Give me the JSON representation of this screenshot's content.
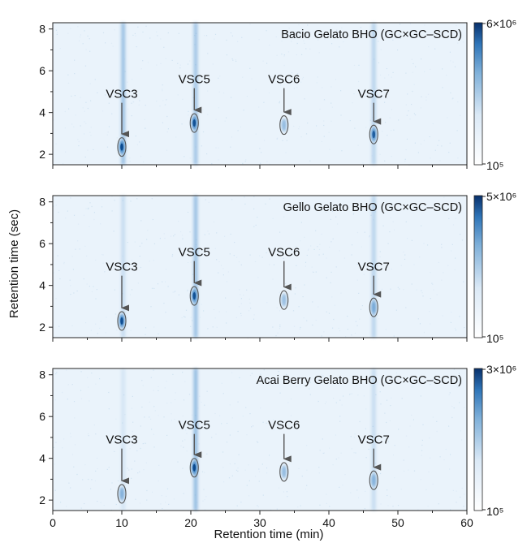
{
  "chart_data": [
    {
      "type": "heatmap",
      "title": "Bacio Gelato BHO (GC×GC–SCD)",
      "xlim": [
        0,
        60
      ],
      "ylim": [
        1.5,
        8.3
      ],
      "colorbar": {
        "max_label": "6×10⁶",
        "min_label": "10⁵",
        "max": 6000000,
        "min": 100000,
        "scale": "log"
      },
      "peaks": [
        {
          "label": "VSC3",
          "x": 10,
          "y": 2.35,
          "intensity": 1.0
        },
        {
          "label": "VSC5",
          "x": 20.5,
          "y": 3.5,
          "intensity": 0.9
        },
        {
          "label": "VSC6",
          "x": 33.5,
          "y": 3.4,
          "intensity": 0.25
        },
        {
          "label": "VSC7",
          "x": 46.5,
          "y": 2.95,
          "intensity": 0.75
        }
      ],
      "label_y": [
        4.7,
        5.4,
        5.4,
        4.7
      ],
      "streaks": [
        {
          "x": 10.2,
          "strength": 0.55
        },
        {
          "x": 20.7,
          "strength": 0.5
        },
        {
          "x": 46.5,
          "strength": 0.35
        }
      ]
    },
    {
      "type": "heatmap",
      "title": "Gello Gelato BHO (GC×GC–SCD)",
      "xlim": [
        0,
        60
      ],
      "ylim": [
        1.5,
        8.3
      ],
      "colorbar": {
        "max_label": "5×10⁶",
        "min_label": "10⁵",
        "max": 5000000,
        "min": 100000,
        "scale": "log"
      },
      "peaks": [
        {
          "label": "VSC3",
          "x": 10,
          "y": 2.3,
          "intensity": 0.95
        },
        {
          "label": "VSC5",
          "x": 20.5,
          "y": 3.5,
          "intensity": 0.9
        },
        {
          "label": "VSC6",
          "x": 33.5,
          "y": 3.3,
          "intensity": 0.2
        },
        {
          "label": "VSC7",
          "x": 46.5,
          "y": 2.95,
          "intensity": 0.35
        }
      ],
      "label_y": [
        4.7,
        5.4,
        5.4,
        4.7
      ],
      "streaks": [
        {
          "x": 10.2,
          "strength": 0.25
        },
        {
          "x": 20.7,
          "strength": 0.55
        },
        {
          "x": 46.5,
          "strength": 0.35
        }
      ]
    },
    {
      "type": "heatmap",
      "title": "Acai Berry Gelato BHO (GC×GC–SCD)",
      "xlim": [
        0,
        60
      ],
      "ylim": [
        1.5,
        8.3
      ],
      "colorbar": {
        "max_label": "3×10⁶",
        "min_label": "10⁵",
        "max": 3000000,
        "min": 100000,
        "scale": "log"
      },
      "peaks": [
        {
          "label": "VSC3",
          "x": 10,
          "y": 2.3,
          "intensity": 0.35
        },
        {
          "label": "VSC5",
          "x": 20.5,
          "y": 3.55,
          "intensity": 1.0
        },
        {
          "label": "VSC6",
          "x": 33.5,
          "y": 3.35,
          "intensity": 0.25
        },
        {
          "label": "VSC7",
          "x": 46.5,
          "y": 2.95,
          "intensity": 0.25
        }
      ],
      "label_y": [
        4.7,
        5.4,
        5.4,
        4.7
      ],
      "streaks": [
        {
          "x": 10.2,
          "strength": 0.15
        },
        {
          "x": 20.7,
          "strength": 0.6
        },
        {
          "x": 46.5,
          "strength": 0.25
        }
      ]
    }
  ],
  "axes": {
    "xlabel": "Retention time (min)",
    "ylabel": "Retention time (sec)",
    "xticks": [
      0,
      10,
      20,
      30,
      40,
      50,
      60
    ],
    "yticks": [
      2,
      4,
      6,
      8
    ]
  }
}
